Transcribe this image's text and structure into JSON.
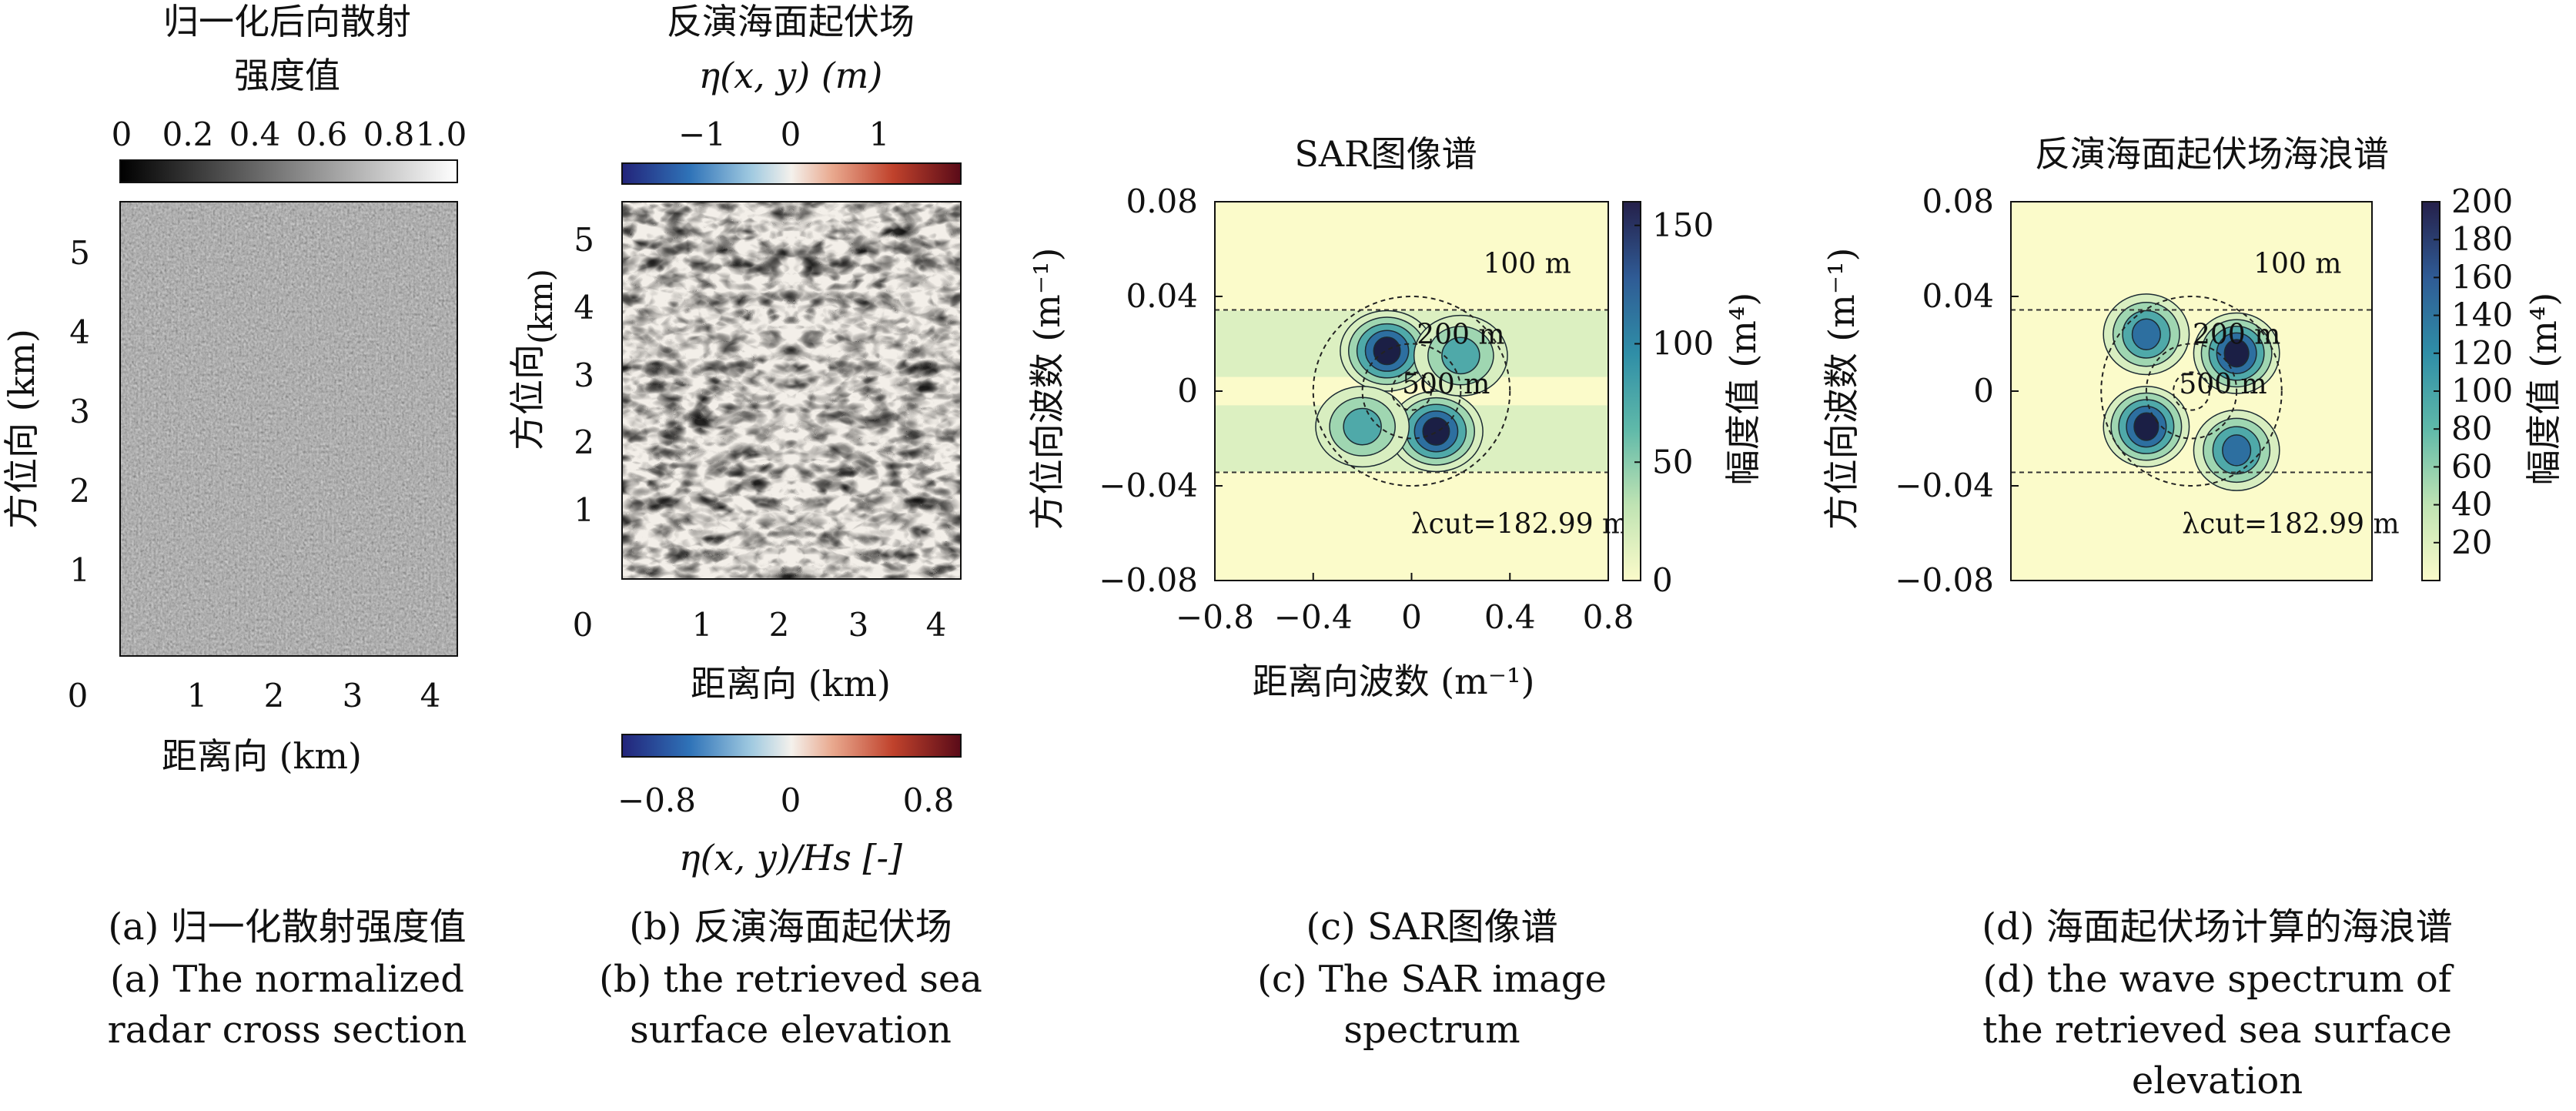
{
  "panels": [
    {
      "id": "a",
      "title_lines": [
        "归一化后向散射",
        "强度值"
      ],
      "colorbar": {
        "ticks": [
          "0",
          "0.2",
          "0.4",
          "0.6",
          "0.8",
          "1.0"
        ]
      },
      "xlabel": "距离向 (km)",
      "ylabel": "方位向 (km)",
      "xticks": [
        "0",
        "1",
        "2",
        "3",
        "4"
      ],
      "yticks": [
        "1",
        "2",
        "3",
        "4",
        "5"
      ],
      "caption_lines": [
        "(a) 归一化散射强度值",
        "(a) The normalized",
        "radar cross section"
      ]
    },
    {
      "id": "b",
      "title_lines": [
        "反演海面起伏场",
        "η(x, y) (m)"
      ],
      "colorbar_top": {
        "ticks": [
          "−1",
          "0",
          "1"
        ]
      },
      "colorbar_bottom": {
        "ticks": [
          "−0.8",
          "0",
          "0.8"
        ],
        "label": "η(x, y)/Hs [-]"
      },
      "xlabel": "距离向 (km)",
      "ylabel": "方位向",
      "ylabel2": "(km)",
      "xticks": [
        "0",
        "1",
        "2",
        "3",
        "4"
      ],
      "yticks": [
        "1",
        "2",
        "3",
        "4",
        "5"
      ],
      "caption_lines": [
        "(b) 反演海面起伏场",
        "(b) the retrieved sea",
        "surface elevation"
      ]
    }
  ],
  "chart_data": [
    {
      "type": "heatmap",
      "title": "SAR图像谱",
      "xlabel": "距离向波数 (m⁻¹)",
      "ylabel": "方位向波数 (m⁻¹)",
      "xlim": [
        -0.8,
        0.8
      ],
      "ylim": [
        -0.08,
        0.08
      ],
      "xticks": [
        "−0.8",
        "−0.4",
        "0",
        "0.4",
        "0.8"
      ],
      "yticks": [
        "0.08",
        "0.04",
        "0",
        "−0.04",
        "−0.08"
      ],
      "colorbar": {
        "label": "幅度值 (m⁴)",
        "range": [
          0,
          160
        ],
        "ticks": [
          "0",
          "50",
          "100",
          "150"
        ]
      },
      "circles": [
        {
          "label": "100 m",
          "wavelength_m": 100
        },
        {
          "label": "200 m",
          "wavelength_m": 200
        },
        {
          "label": "500 m",
          "wavelength_m": 500
        }
      ],
      "cutoff": {
        "label": "λcut=182.99 m",
        "wavenumber": 0.0343
      },
      "peaks": [
        {
          "kx": -0.1,
          "ky": 0.017,
          "value": 150
        },
        {
          "kx": 0.1,
          "ky": -0.017,
          "value": 150
        },
        {
          "kx": 0.2,
          "ky": 0.015,
          "value": 100
        },
        {
          "kx": -0.2,
          "ky": -0.015,
          "value": 100
        }
      ],
      "caption_lines": [
        "(c) SAR图像谱",
        "(c) The SAR image",
        "spectrum"
      ]
    },
    {
      "type": "heatmap",
      "title": "反演海面起伏场海浪谱",
      "ylabel": "方位向波数 (m⁻¹)",
      "xlim": [
        -0.8,
        0.8
      ],
      "ylim": [
        -0.08,
        0.08
      ],
      "yticks": [
        "0.08",
        "0.04",
        "0",
        "−0.04",
        "−0.08"
      ],
      "colorbar": {
        "label": "幅度值 (m⁴)",
        "range": [
          0,
          200
        ],
        "ticks": [
          "20",
          "40",
          "60",
          "80",
          "100",
          "120",
          "140",
          "160",
          "180",
          "200"
        ]
      },
      "circles": [
        {
          "label": "100 m",
          "wavelength_m": 100
        },
        {
          "label": "200 m",
          "wavelength_m": 200
        },
        {
          "label": "500 m",
          "wavelength_m": 500
        }
      ],
      "cutoff": {
        "label": "λcut=182.99 m",
        "wavenumber": 0.0343
      },
      "peaks": [
        {
          "kx": -0.2,
          "ky": 0.024,
          "value": 150
        },
        {
          "kx": 0.2,
          "ky": 0.016,
          "value": 200
        },
        {
          "kx": -0.2,
          "ky": -0.015,
          "value": 200
        },
        {
          "kx": 0.2,
          "ky": -0.025,
          "value": 150
        }
      ],
      "caption_lines": [
        "(d) 海面起伏场计算的海浪谱",
        "(d) the wave spectrum of",
        "the retrieved sea surface",
        "elevation"
      ]
    }
  ]
}
